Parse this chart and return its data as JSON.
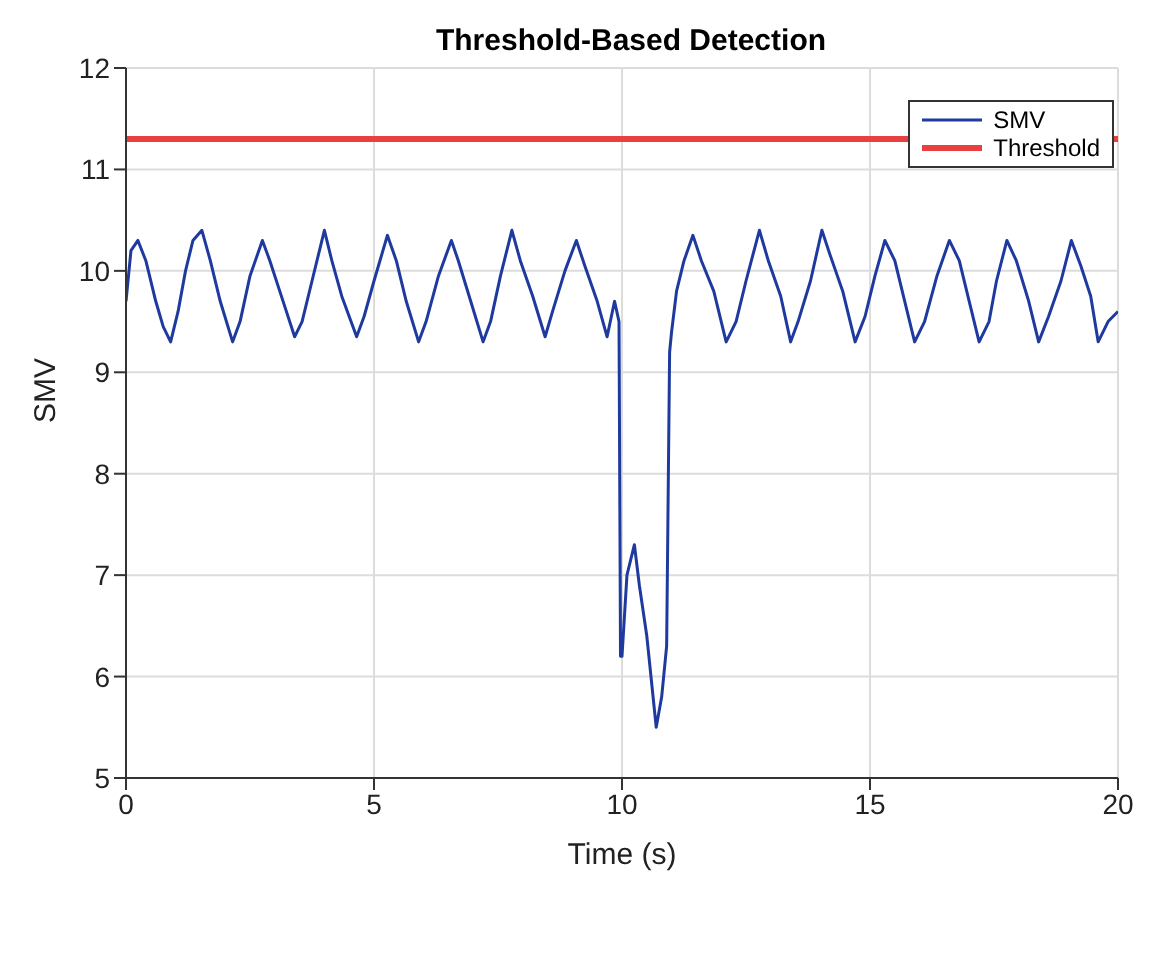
{
  "chart_data": {
    "type": "line",
    "title": "Threshold-Based Detection",
    "xlabel": "Time (s)",
    "ylabel": "SMV",
    "series": [
      {
        "name": "SMV",
        "color": "#1f3a9e",
        "x": [
          0,
          0.1,
          0.24,
          0.4,
          0.6,
          0.75,
          0.9,
          1.05,
          1.2,
          1.35,
          1.53,
          1.7,
          1.9,
          2.15,
          2.3,
          2.5,
          2.75,
          2.9,
          3.1,
          3.4,
          3.55,
          3.75,
          4.0,
          4.15,
          4.35,
          4.65,
          4.8,
          5.0,
          5.27,
          5.45,
          5.65,
          5.9,
          6.05,
          6.3,
          6.56,
          6.7,
          6.95,
          7.2,
          7.35,
          7.55,
          7.78,
          7.95,
          8.2,
          8.45,
          8.6,
          8.85,
          9.08,
          9.25,
          9.5,
          9.7,
          9.85,
          9.94,
          9.97,
          10.0,
          10.1,
          10.25,
          10.35,
          10.5,
          10.69,
          10.8,
          10.9,
          10.96,
          11.0,
          11.1,
          11.25,
          11.43,
          11.6,
          11.85,
          12.1,
          12.3,
          12.5,
          12.77,
          12.95,
          13.2,
          13.4,
          13.55,
          13.8,
          14.03,
          14.2,
          14.45,
          14.7,
          14.9,
          15.1,
          15.3,
          15.5,
          15.7,
          15.9,
          16.1,
          16.35,
          16.6,
          16.8,
          17.0,
          17.2,
          17.4,
          17.55,
          17.76,
          17.95,
          18.2,
          18.4,
          18.6,
          18.85,
          19.06,
          19.25,
          19.45,
          19.6,
          19.8,
          20
        ],
        "values": [
          9.7,
          10.2,
          10.3,
          10.1,
          9.7,
          9.45,
          9.3,
          9.6,
          10.0,
          10.3,
          10.4,
          10.1,
          9.7,
          9.3,
          9.5,
          9.95,
          10.3,
          10.1,
          9.8,
          9.35,
          9.5,
          9.9,
          10.4,
          10.1,
          9.75,
          9.35,
          9.55,
          9.9,
          10.35,
          10.1,
          9.7,
          9.3,
          9.5,
          9.95,
          10.3,
          10.1,
          9.7,
          9.3,
          9.5,
          9.95,
          10.4,
          10.1,
          9.75,
          9.35,
          9.6,
          10.0,
          10.3,
          10.05,
          9.7,
          9.35,
          9.7,
          9.5,
          6.2,
          6.2,
          7.0,
          7.3,
          6.9,
          6.4,
          5.5,
          5.8,
          6.3,
          9.2,
          9.4,
          9.8,
          10.1,
          10.35,
          10.1,
          9.8,
          9.3,
          9.5,
          9.9,
          10.4,
          10.1,
          9.75,
          9.3,
          9.5,
          9.9,
          10.4,
          10.15,
          9.8,
          9.3,
          9.55,
          9.95,
          10.3,
          10.1,
          9.7,
          9.3,
          9.5,
          9.95,
          10.3,
          10.1,
          9.7,
          9.3,
          9.5,
          9.9,
          10.3,
          10.1,
          9.7,
          9.3,
          9.55,
          9.9,
          10.3,
          10.05,
          9.75,
          9.3,
          9.5,
          9.6
        ]
      },
      {
        "name": "Threshold",
        "color": "#e84040",
        "x": [
          0,
          20
        ],
        "values": [
          11.3,
          11.3
        ]
      }
    ],
    "xlim": [
      0,
      20
    ],
    "xticks": [
      0,
      5,
      10,
      15,
      20
    ],
    "ylim": [
      5,
      12
    ],
    "yticks": [
      5,
      6,
      7,
      8,
      9,
      10,
      11,
      12
    ],
    "grid": true,
    "legend": "top right"
  }
}
